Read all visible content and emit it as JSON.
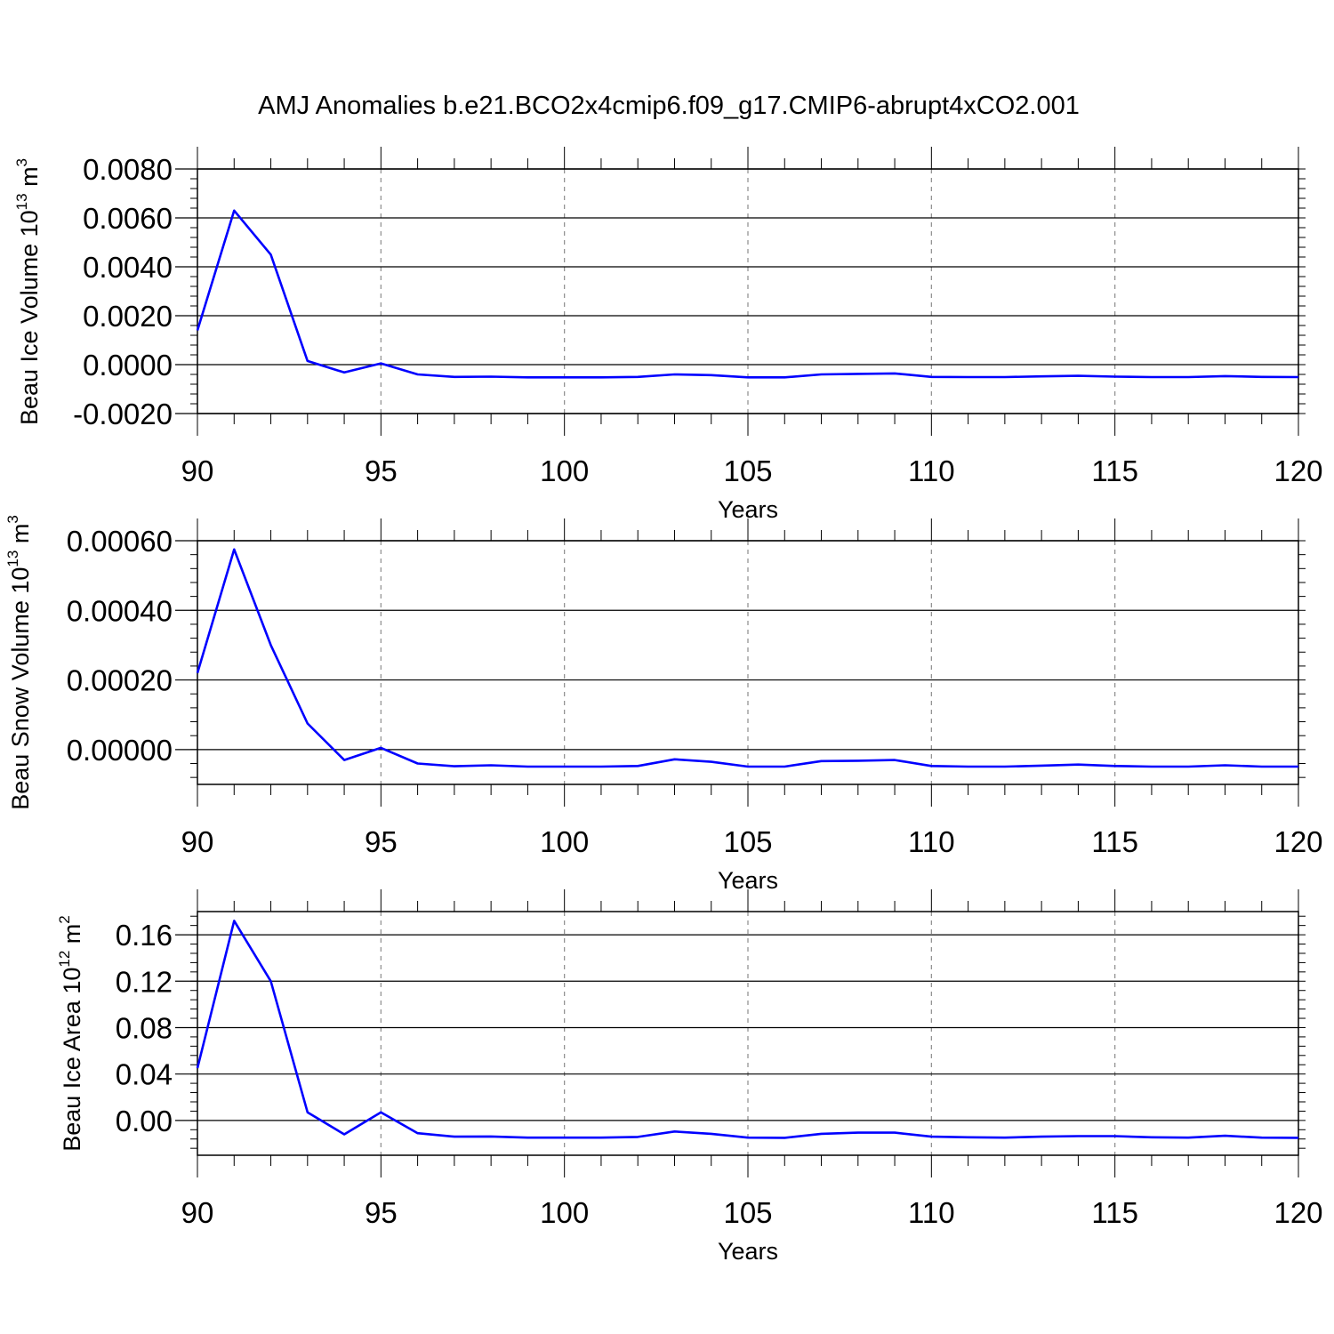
{
  "figure": {
    "title": "AMJ Anomalies b.e21.BCO2x4cmip6.f09_g17.CMIP6-abrupt4xCO2.001",
    "line_color": "#0000ff",
    "grid_color": "#8c8c8c"
  },
  "chart_data": [
    {
      "type": "line",
      "ylabel": {
        "main": "Beau Ice Volume 10",
        "sup": "13",
        "unit": " m",
        "unit_sup": "3"
      },
      "xlabel": "Years",
      "xlim": [
        90,
        120
      ],
      "ylim": [
        -0.002,
        0.008
      ],
      "x_ticks": [
        90,
        95,
        100,
        105,
        110,
        115,
        120
      ],
      "x_tick_labels": [
        "90",
        "95",
        "100",
        "105",
        "110",
        "115",
        "120"
      ],
      "y_ticks": [
        -0.002,
        0.0,
        0.002,
        0.004,
        0.006,
        0.008
      ],
      "y_tick_labels": [
        "-0.0020",
        "0.0000",
        "0.0020",
        "0.0040",
        "0.0060",
        "0.0080"
      ],
      "grid": "x-dashed",
      "series": [
        {
          "x": [
            90,
            91,
            92,
            93,
            94,
            95,
            96,
            97,
            98,
            99,
            100,
            101,
            102,
            103,
            104,
            105,
            106,
            107,
            108,
            109,
            110,
            111,
            112,
            113,
            114,
            115,
            116,
            117,
            118,
            119,
            120
          ],
          "values": [
            0.0014,
            0.0063,
            0.0045,
            0.00015,
            -0.00032,
            5e-05,
            -0.0004,
            -0.0005,
            -0.00049,
            -0.00052,
            -0.00052,
            -0.00052,
            -0.0005,
            -0.0004,
            -0.00043,
            -0.00052,
            -0.00052,
            -0.0004,
            -0.00038,
            -0.00036,
            -0.0005,
            -0.00051,
            -0.00051,
            -0.00048,
            -0.00046,
            -0.00049,
            -0.00051,
            -0.00051,
            -0.00047,
            -0.0005,
            -0.00051
          ]
        }
      ]
    },
    {
      "type": "line",
      "ylabel": {
        "main": "Beau Snow Volume 10",
        "sup": "13",
        "unit": " m",
        "unit_sup": "3"
      },
      "xlabel": "Years",
      "xlim": [
        90,
        120
      ],
      "ylim": [
        -0.0001,
        0.0006
      ],
      "x_ticks": [
        90,
        95,
        100,
        105,
        110,
        115,
        120
      ],
      "x_tick_labels": [
        "90",
        "95",
        "100",
        "105",
        "110",
        "115",
        "120"
      ],
      "y_ticks": [
        0.0,
        0.0002,
        0.0004,
        0.0006
      ],
      "y_tick_labels": [
        "0.00000",
        "0.00020",
        "0.00040",
        "0.00060"
      ],
      "grid": "x-dashed",
      "series": [
        {
          "x": [
            90,
            91,
            92,
            93,
            94,
            95,
            96,
            97,
            98,
            99,
            100,
            101,
            102,
            103,
            104,
            105,
            106,
            107,
            108,
            109,
            110,
            111,
            112,
            113,
            114,
            115,
            116,
            117,
            118,
            119,
            120
          ],
          "values": [
            0.00022,
            0.000575,
            0.0003,
            7.5e-05,
            -3e-05,
            5e-06,
            -4e-05,
            -4.8e-05,
            -4.5e-05,
            -4.9e-05,
            -4.9e-05,
            -4.9e-05,
            -4.7e-05,
            -2.8e-05,
            -3.5e-05,
            -4.9e-05,
            -4.9e-05,
            -3.3e-05,
            -3.2e-05,
            -3e-05,
            -4.7e-05,
            -4.9e-05,
            -4.9e-05,
            -4.6e-05,
            -4.3e-05,
            -4.7e-05,
            -4.9e-05,
            -4.9e-05,
            -4.5e-05,
            -4.9e-05,
            -4.9e-05
          ]
        }
      ]
    },
    {
      "type": "line",
      "ylabel": {
        "main": "Beau Ice Area 10",
        "sup": "12",
        "unit": " m",
        "unit_sup": "2"
      },
      "xlabel": "Years",
      "xlim": [
        90,
        120
      ],
      "ylim": [
        -0.03,
        0.18
      ],
      "x_ticks": [
        90,
        95,
        100,
        105,
        110,
        115,
        120
      ],
      "x_tick_labels": [
        "90",
        "95",
        "100",
        "105",
        "110",
        "115",
        "120"
      ],
      "y_ticks": [
        0.0,
        0.04,
        0.08,
        0.12,
        0.16
      ],
      "y_tick_labels": [
        "0.00",
        "0.04",
        "0.08",
        "0.12",
        "0.16"
      ],
      "grid": "x-dashed",
      "series": [
        {
          "x": [
            90,
            91,
            92,
            93,
            94,
            95,
            96,
            97,
            98,
            99,
            100,
            101,
            102,
            103,
            104,
            105,
            106,
            107,
            108,
            109,
            110,
            111,
            112,
            113,
            114,
            115,
            116,
            117,
            118,
            119,
            120
          ],
          "values": [
            0.045,
            0.172,
            0.12,
            0.007,
            -0.012,
            0.007,
            -0.011,
            -0.014,
            -0.0138,
            -0.0148,
            -0.0148,
            -0.0148,
            -0.0142,
            -0.0095,
            -0.0115,
            -0.0148,
            -0.015,
            -0.0115,
            -0.0105,
            -0.0105,
            -0.014,
            -0.0145,
            -0.0148,
            -0.014,
            -0.0135,
            -0.0135,
            -0.0145,
            -0.0148,
            -0.0132,
            -0.0148,
            -0.015
          ]
        }
      ]
    }
  ]
}
